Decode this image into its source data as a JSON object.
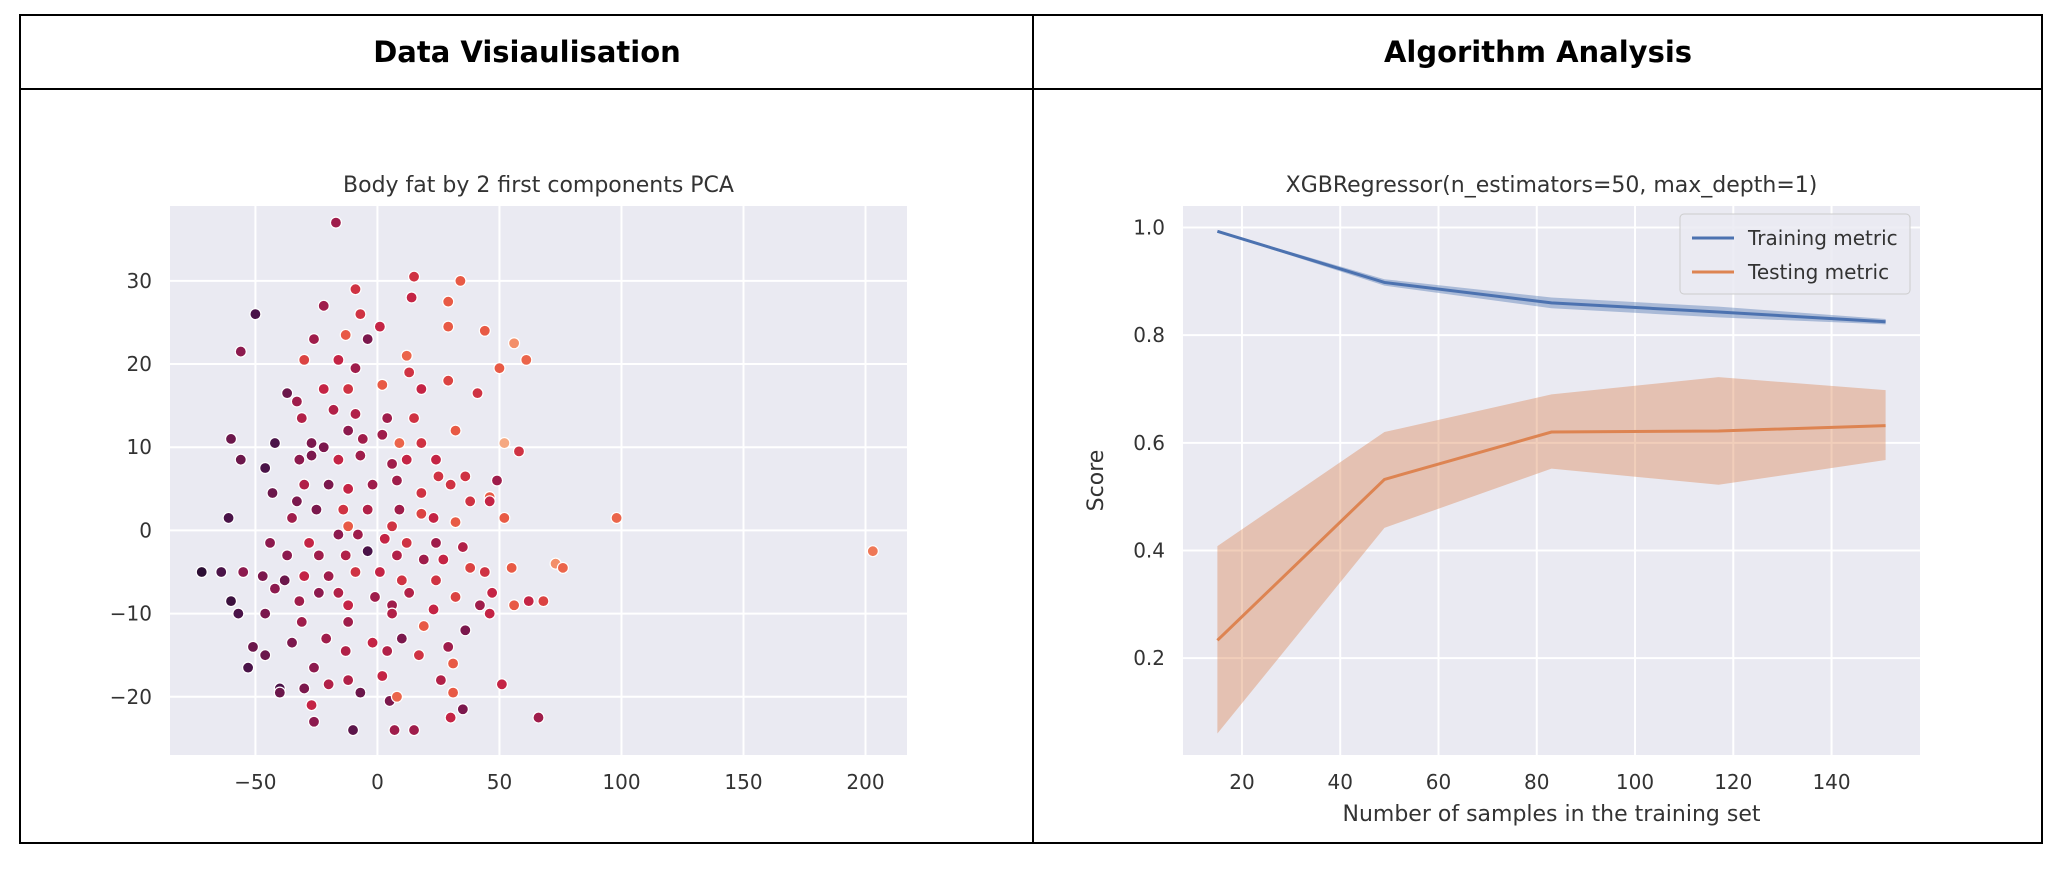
{
  "headers": {
    "left": "Data Visiaulisation",
    "right": "Algorithm Analysis"
  },
  "colors": {
    "plot_bg": "#EAEAF2",
    "train": "#4C72B0",
    "test": "#DD8452"
  },
  "chart_data": [
    {
      "type": "scatter",
      "title": "Body fat by 2 first components PCA",
      "xlim": [
        -85,
        217
      ],
      "ylim": [
        -27,
        39
      ],
      "xticks": [
        -50,
        0,
        50,
        100,
        150,
        200
      ],
      "yticks": [
        -20,
        -10,
        0,
        10,
        20,
        30
      ],
      "xtick_labels": [
        "−50",
        "0",
        "50",
        "100",
        "150",
        "200"
      ],
      "ytick_labels": [
        "−20",
        "−10",
        "0",
        "10",
        "20",
        "30"
      ],
      "grid": true,
      "legend": "none",
      "colormap": "rocket",
      "points": [
        [
          -17,
          37,
          0.45
        ],
        [
          15,
          30.5,
          0.6
        ],
        [
          34,
          30,
          0.72
        ],
        [
          -9,
          29,
          0.6
        ],
        [
          29,
          27.5,
          0.72
        ],
        [
          -50,
          26,
          0.2
        ],
        [
          -22,
          27,
          0.45
        ],
        [
          -7,
          26,
          0.6
        ],
        [
          1,
          24.5,
          0.55
        ],
        [
          14,
          28,
          0.55
        ],
        [
          44,
          24,
          0.72
        ],
        [
          29,
          24.5,
          0.72
        ],
        [
          -13,
          23.5,
          0.72
        ],
        [
          -26,
          23,
          0.45
        ],
        [
          -4,
          23,
          0.35
        ],
        [
          -56,
          21.5,
          0.4
        ],
        [
          56,
          22.5,
          0.85
        ],
        [
          61,
          20.5,
          0.75
        ],
        [
          -16,
          20.5,
          0.55
        ],
        [
          -30,
          20.5,
          0.65
        ],
        [
          -9,
          19.5,
          0.45
        ],
        [
          12,
          21,
          0.75
        ],
        [
          50,
          19.5,
          0.72
        ],
        [
          13,
          19,
          0.6
        ],
        [
          -37,
          16.5,
          0.3
        ],
        [
          -22,
          17,
          0.55
        ],
        [
          -12,
          17,
          0.6
        ],
        [
          2,
          17.5,
          0.72
        ],
        [
          18,
          17,
          0.55
        ],
        [
          29,
          18,
          0.65
        ],
        [
          41,
          16.5,
          0.6
        ],
        [
          -33,
          15.5,
          0.45
        ],
        [
          -18,
          14.5,
          0.5
        ],
        [
          -9,
          14,
          0.5
        ],
        [
          4,
          13.5,
          0.45
        ],
        [
          15,
          13.5,
          0.6
        ],
        [
          -31,
          13.5,
          0.5
        ],
        [
          -60,
          11,
          0.3
        ],
        [
          -42,
          10.5,
          0.2
        ],
        [
          -27,
          10.5,
          0.35
        ],
        [
          -22,
          10,
          0.35
        ],
        [
          -12,
          12,
          0.4
        ],
        [
          -6,
          11,
          0.45
        ],
        [
          2,
          11.5,
          0.45
        ],
        [
          9,
          10.5,
          0.75
        ],
        [
          18,
          10.5,
          0.6
        ],
        [
          24,
          8.5,
          0.55
        ],
        [
          32,
          12,
          0.72
        ],
        [
          52,
          10.5,
          0.9
        ],
        [
          58,
          9.5,
          0.6
        ],
        [
          -56,
          8.5,
          0.3
        ],
        [
          -46,
          7.5,
          0.2
        ],
        [
          -32,
          8.5,
          0.4
        ],
        [
          -27,
          9,
          0.35
        ],
        [
          -16,
          8.5,
          0.55
        ],
        [
          -7,
          9,
          0.45
        ],
        [
          6,
          8,
          0.45
        ],
        [
          12,
          8.5,
          0.55
        ],
        [
          25,
          6.5,
          0.6
        ],
        [
          36,
          6.5,
          0.6
        ],
        [
          -30,
          5.5,
          0.5
        ],
        [
          -20,
          5.5,
          0.35
        ],
        [
          -12,
          5,
          0.55
        ],
        [
          -2,
          5.5,
          0.45
        ],
        [
          8,
          6,
          0.45
        ],
        [
          18,
          4.5,
          0.6
        ],
        [
          30,
          5.5,
          0.6
        ],
        [
          46,
          4,
          0.72
        ],
        [
          49,
          6,
          0.45
        ],
        [
          -43,
          4.5,
          0.3
        ],
        [
          -33,
          3.5,
          0.35
        ],
        [
          -25,
          2.5,
          0.35
        ],
        [
          -14,
          2.5,
          0.6
        ],
        [
          -4,
          2.5,
          0.5
        ],
        [
          9,
          2.5,
          0.45
        ],
        [
          18,
          2,
          0.65
        ],
        [
          38,
          3.5,
          0.6
        ],
        [
          46,
          3.5,
          0.55
        ],
        [
          -61,
          1.5,
          0.2
        ],
        [
          -35,
          1.5,
          0.45
        ],
        [
          -12,
          0.5,
          0.72
        ],
        [
          6,
          0.5,
          0.6
        ],
        [
          23,
          1.5,
          0.55
        ],
        [
          32,
          1,
          0.72
        ],
        [
          52,
          1.5,
          0.72
        ],
        [
          98,
          1.5,
          0.75
        ],
        [
          -44,
          -1.5,
          0.4
        ],
        [
          -28,
          -1.5,
          0.55
        ],
        [
          -16,
          -0.5,
          0.4
        ],
        [
          -8,
          -0.5,
          0.45
        ],
        [
          3,
          -1,
          0.55
        ],
        [
          12,
          -1.5,
          0.6
        ],
        [
          24,
          -1.5,
          0.45
        ],
        [
          35,
          -2,
          0.5
        ],
        [
          -37,
          -3,
          0.4
        ],
        [
          -24,
          -3,
          0.45
        ],
        [
          -13,
          -3,
          0.5
        ],
        [
          -4,
          -2.5,
          0.2
        ],
        [
          8,
          -3,
          0.5
        ],
        [
          19,
          -3.5,
          0.45
        ],
        [
          27,
          -3.5,
          0.55
        ],
        [
          38,
          -4.5,
          0.65
        ],
        [
          203,
          -2.5,
          0.8
        ],
        [
          -72,
          -5,
          0.1
        ],
        [
          -64,
          -5,
          0.2
        ],
        [
          -55,
          -5,
          0.4
        ],
        [
          -47,
          -5.5,
          0.35
        ],
        [
          -38,
          -6,
          0.3
        ],
        [
          -30,
          -5.5,
          0.55
        ],
        [
          -20,
          -5.5,
          0.45
        ],
        [
          -9,
          -5,
          0.6
        ],
        [
          1,
          -5,
          0.55
        ],
        [
          10,
          -6,
          0.6
        ],
        [
          24,
          -6,
          0.6
        ],
        [
          44,
          -5,
          0.6
        ],
        [
          55,
          -4.5,
          0.72
        ],
        [
          73,
          -4,
          0.85
        ],
        [
          76,
          -4.5,
          0.75
        ],
        [
          -42,
          -7,
          0.4
        ],
        [
          -24,
          -7.5,
          0.4
        ],
        [
          -16,
          -7.5,
          0.5
        ],
        [
          -1,
          -8,
          0.45
        ],
        [
          13,
          -7.5,
          0.5
        ],
        [
          32,
          -8,
          0.65
        ],
        [
          47,
          -7.5,
          0.55
        ],
        [
          -60,
          -8.5,
          0.15
        ],
        [
          -32,
          -8.5,
          0.45
        ],
        [
          -12,
          -9,
          0.55
        ],
        [
          6,
          -9,
          0.45
        ],
        [
          23,
          -9.5,
          0.55
        ],
        [
          42,
          -9,
          0.45
        ],
        [
          56,
          -9,
          0.72
        ],
        [
          62,
          -8.5,
          0.55
        ],
        [
          68,
          -8.5,
          0.65
        ],
        [
          -57,
          -10,
          0.2
        ],
        [
          -46,
          -10,
          0.35
        ],
        [
          -31,
          -11,
          0.45
        ],
        [
          -12,
          -11,
          0.45
        ],
        [
          6,
          -10,
          0.5
        ],
        [
          19,
          -11.5,
          0.72
        ],
        [
          36,
          -12,
          0.35
        ],
        [
          46,
          -10,
          0.55
        ],
        [
          -35,
          -13.5,
          0.35
        ],
        [
          -21,
          -13,
          0.45
        ],
        [
          -2,
          -13.5,
          0.55
        ],
        [
          10,
          -13,
          0.35
        ],
        [
          29,
          -14,
          0.45
        ],
        [
          -51,
          -14,
          0.3
        ],
        [
          -46,
          -15,
          0.3
        ],
        [
          -26,
          -16.5,
          0.4
        ],
        [
          -13,
          -14.5,
          0.5
        ],
        [
          4,
          -14.5,
          0.5
        ],
        [
          17,
          -15,
          0.6
        ],
        [
          31,
          -16,
          0.72
        ],
        [
          -53,
          -16.5,
          0.2
        ],
        [
          -40,
          -19,
          0.2
        ],
        [
          -30,
          -19,
          0.35
        ],
        [
          -20,
          -18.5,
          0.5
        ],
        [
          -12,
          -18,
          0.5
        ],
        [
          2,
          -17.5,
          0.55
        ],
        [
          26,
          -18,
          0.5
        ],
        [
          51,
          -18.5,
          0.55
        ],
        [
          -40,
          -19.5,
          0.3
        ],
        [
          -27,
          -21,
          0.55
        ],
        [
          -7,
          -19.5,
          0.3
        ],
        [
          5,
          -20.5,
          0.35
        ],
        [
          8,
          -20,
          0.75
        ],
        [
          31,
          -19.5,
          0.72
        ],
        [
          -26,
          -23,
          0.4
        ],
        [
          -10,
          -24,
          0.25
        ],
        [
          7,
          -24,
          0.45
        ],
        [
          15,
          -24,
          0.45
        ],
        [
          30,
          -22.5,
          0.55
        ],
        [
          35,
          -21.5,
          0.35
        ],
        [
          66,
          -22.5,
          0.45
        ]
      ]
    },
    {
      "type": "line",
      "title": "XGBRegressor(n_estimators=50, max_depth=1)",
      "xlabel": "Number of samples in the training set",
      "ylabel": "Score",
      "xlim": [
        8,
        158
      ],
      "ylim": [
        0.02,
        1.04
      ],
      "xticks": [
        20,
        40,
        60,
        80,
        100,
        120,
        140
      ],
      "yticks": [
        0.2,
        0.4,
        0.6,
        0.8,
        1.0
      ],
      "xtick_labels": [
        "20",
        "40",
        "60",
        "80",
        "100",
        "120",
        "140"
      ],
      "ytick_labels": [
        "0.2",
        "0.4",
        "0.6",
        "0.8",
        "1.0"
      ],
      "grid": true,
      "legend": "top-right",
      "x": [
        15,
        49,
        83,
        117,
        151
      ],
      "series": [
        {
          "name": "Training metric",
          "values": [
            0.993,
            0.898,
            0.86,
            0.843,
            0.825
          ],
          "band_low": [
            0.992,
            0.892,
            0.85,
            0.833,
            0.82
          ],
          "band_high": [
            0.994,
            0.904,
            0.87,
            0.853,
            0.83
          ]
        },
        {
          "name": "Testing metric",
          "values": [
            0.233,
            0.532,
            0.62,
            0.622,
            0.632
          ],
          "band_low": [
            0.06,
            0.442,
            0.552,
            0.522,
            0.568
          ],
          "band_high": [
            0.408,
            0.62,
            0.69,
            0.722,
            0.698
          ]
        }
      ]
    }
  ]
}
